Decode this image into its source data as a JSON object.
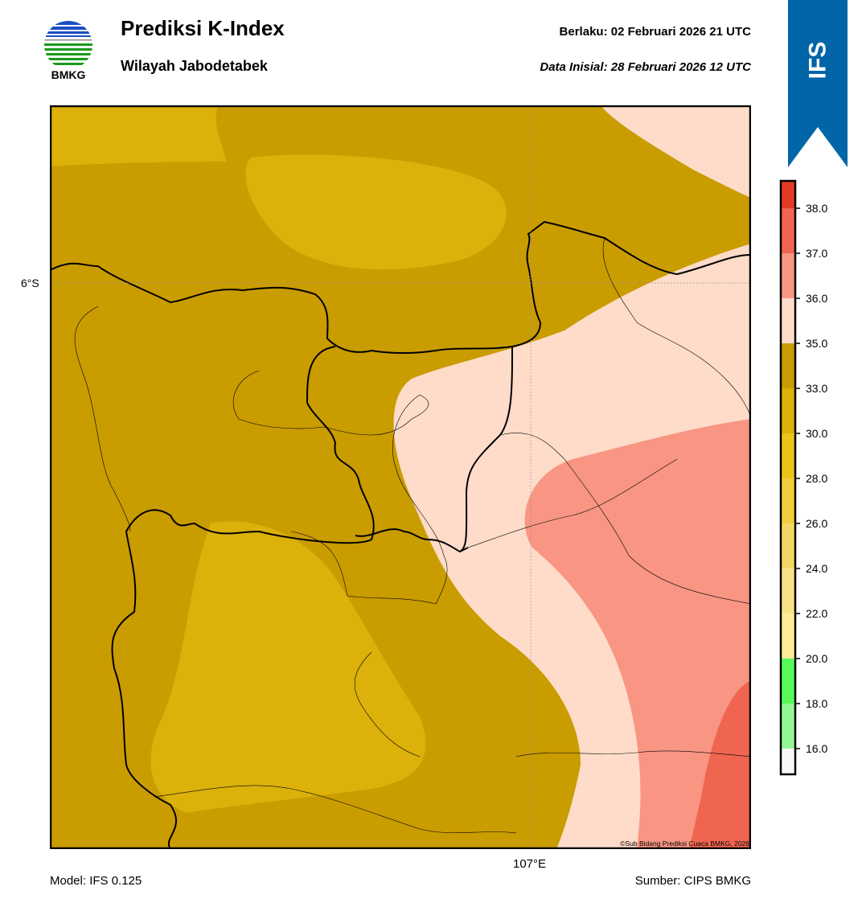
{
  "header": {
    "logo_text": "BMKG",
    "title": "Prediksi K-Index",
    "subtitle": "Wilayah Jabodetabek",
    "valid_label": "Berlaku:  02 Februari 2026 21 UTC",
    "init_label": "Data Inisial:  28 Februari 2026 12 UTC",
    "model_badge": "IFS"
  },
  "map": {
    "lat_label": "6°S",
    "lon_label": "107°E",
    "copyright": "©Sub Bidang Prediksi Cuaca BMKG, 2026"
  },
  "footer": {
    "model": "Model: IFS 0.125",
    "source": "Sumber: CIPS BMKG"
  },
  "colorbar": {
    "ticks": [
      "16.0",
      "18.0",
      "20.0",
      "22.0",
      "24.0",
      "26.0",
      "28.0",
      "30.0",
      "33.0",
      "35.0",
      "36.0",
      "37.0",
      "38.0"
    ],
    "colors": [
      "#F8F8F8",
      "#93F893",
      "#58FA58",
      "#FFEC99",
      "#F8E285",
      "#F4D763",
      "#F0CE3C",
      "#E9C51A",
      "#DBB10A",
      "#C99C00",
      "#FEDCC9",
      "#F89583",
      "#F06550",
      "#E53A25"
    ]
  },
  "palette": {
    "k33_35": "#C99C00",
    "k30_33": "#DBB10A",
    "k35_36": "#FEDCC9",
    "k36_37": "#F89583",
    "k37_38": "#F06550",
    "brand": "#0066A8"
  }
}
